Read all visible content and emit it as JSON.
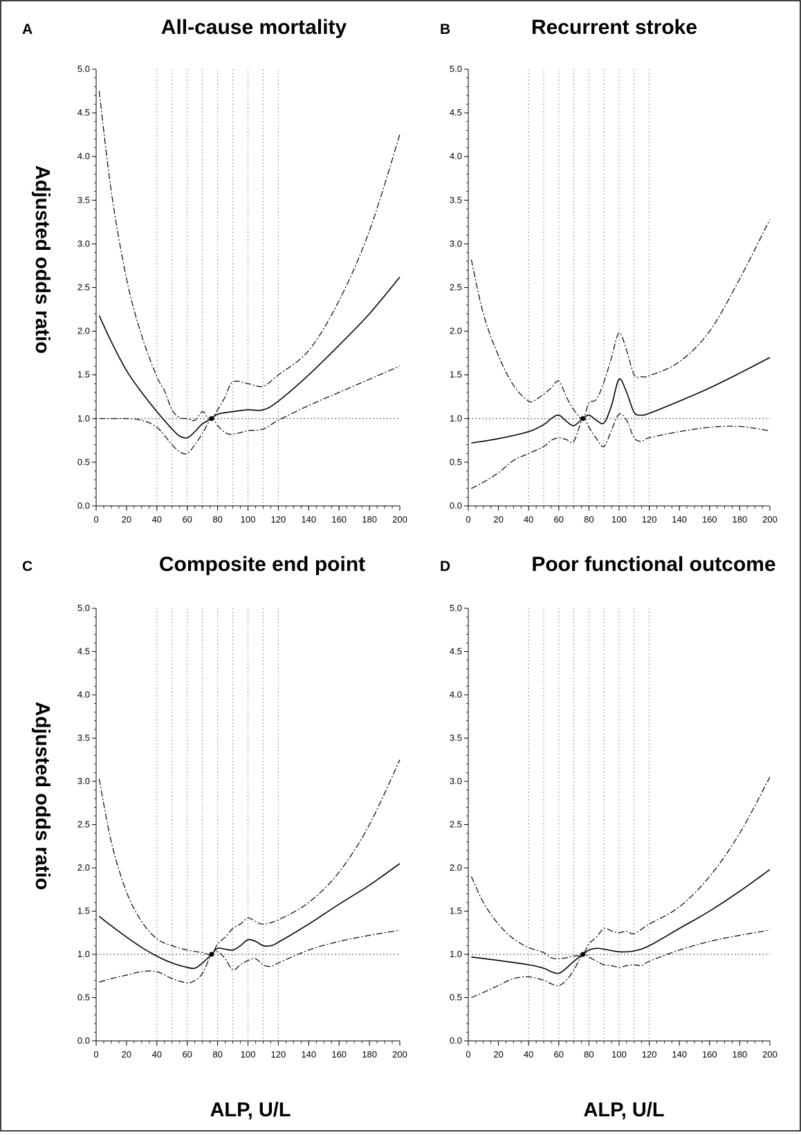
{
  "figure": {
    "y_axis_label_top": "Adjusted odds ratio",
    "y_axis_label_bottom": "Adjusted odds ratio",
    "x_axis_label_left": "ALP, U/L",
    "x_axis_label_right": "ALP, U/L"
  },
  "chart_data": [
    {
      "type": "line",
      "panel_label": "A",
      "title": "All-cause mortality",
      "xlabel": "ALP, U/L",
      "ylabel": "Adjusted odds ratio",
      "xlim": [
        0,
        200
      ],
      "ylim": [
        0,
        5
      ],
      "x_ticks": [
        "0",
        "20",
        "40",
        "60",
        "80",
        "100",
        "120",
        "140",
        "160",
        "180",
        "200"
      ],
      "y_ticks": [
        "0.0",
        "0.5",
        "1.0",
        "1.5",
        "2.0",
        "2.5",
        "3.0",
        "3.5",
        "4.0",
        "4.5",
        "5.0"
      ],
      "reference_line_y": 1.0,
      "vertical_reference_x": [
        40,
        50,
        60,
        70,
        80,
        90,
        100,
        110,
        120
      ],
      "reference_point": [
        76,
        1.0
      ],
      "series": [
        {
          "style": "solid",
          "x": [
            2,
            10,
            20,
            30,
            40,
            50,
            55,
            60,
            65,
            70,
            76,
            80,
            90,
            100,
            110,
            120,
            140,
            160,
            180,
            200
          ],
          "y": [
            2.18,
            1.88,
            1.55,
            1.3,
            1.08,
            0.88,
            0.8,
            0.78,
            0.85,
            0.94,
            1.0,
            1.05,
            1.08,
            1.1,
            1.1,
            1.2,
            1.5,
            1.84,
            2.2,
            2.62
          ]
        },
        {
          "style": "dash-dot",
          "x": [
            2,
            10,
            20,
            30,
            40,
            45,
            50,
            55,
            60,
            65,
            70,
            73,
            76,
            80,
            85,
            90,
            100,
            110,
            120,
            140,
            160,
            180,
            200
          ],
          "y": [
            4.75,
            3.6,
            2.6,
            1.95,
            1.48,
            1.32,
            1.1,
            1.01,
            1.0,
            0.98,
            1.08,
            1.02,
            1.0,
            1.1,
            1.25,
            1.42,
            1.4,
            1.37,
            1.5,
            1.78,
            2.35,
            3.15,
            4.25
          ]
        },
        {
          "style": "dash-dot",
          "x": [
            2,
            10,
            20,
            30,
            40,
            50,
            55,
            60,
            65,
            70,
            76,
            80,
            85,
            90,
            100,
            110,
            120,
            140,
            160,
            180,
            200
          ],
          "y": [
            1.0,
            1.0,
            1.0,
            0.98,
            0.9,
            0.7,
            0.62,
            0.6,
            0.7,
            0.83,
            1.0,
            0.92,
            0.84,
            0.82,
            0.86,
            0.88,
            0.98,
            1.15,
            1.3,
            1.45,
            1.6
          ]
        }
      ]
    },
    {
      "type": "line",
      "panel_label": "B",
      "title": "Recurrent stroke",
      "xlabel": "ALP, U/L",
      "ylabel": "Adjusted odds ratio",
      "xlim": [
        0,
        200
      ],
      "ylim": [
        0,
        5
      ],
      "x_ticks": [
        "0",
        "20",
        "40",
        "60",
        "80",
        "100",
        "120",
        "140",
        "160",
        "180",
        "200"
      ],
      "y_ticks": [
        "0.0",
        "0.5",
        "1.0",
        "1.5",
        "2.0",
        "2.5",
        "3.0",
        "3.5",
        "4.0",
        "4.5",
        "5.0"
      ],
      "reference_line_y": 1.0,
      "vertical_reference_x": [
        40,
        50,
        60,
        70,
        80,
        90,
        100,
        110,
        120
      ],
      "reference_point": [
        76,
        1.0
      ],
      "series": [
        {
          "style": "solid",
          "x": [
            2,
            20,
            40,
            50,
            55,
            60,
            65,
            70,
            76,
            80,
            85,
            90,
            95,
            100,
            105,
            110,
            115,
            120,
            140,
            160,
            180,
            200
          ],
          "y": [
            0.72,
            0.77,
            0.85,
            0.93,
            1.0,
            1.04,
            0.97,
            0.92,
            1.0,
            1.04,
            0.98,
            0.95,
            1.15,
            1.45,
            1.3,
            1.07,
            1.04,
            1.06,
            1.2,
            1.35,
            1.52,
            1.7
          ]
        },
        {
          "style": "dash-dot",
          "x": [
            2,
            10,
            20,
            30,
            40,
            45,
            50,
            55,
            60,
            65,
            70,
            76,
            80,
            85,
            90,
            95,
            100,
            105,
            110,
            115,
            120,
            140,
            160,
            180,
            200
          ],
          "y": [
            2.82,
            2.2,
            1.72,
            1.38,
            1.2,
            1.22,
            1.28,
            1.35,
            1.43,
            1.25,
            1.1,
            1.0,
            1.18,
            1.22,
            1.42,
            1.7,
            1.98,
            1.78,
            1.5,
            1.48,
            1.49,
            1.65,
            2.0,
            2.6,
            3.28
          ]
        },
        {
          "style": "dash-dot",
          "x": [
            2,
            10,
            20,
            30,
            40,
            50,
            55,
            60,
            65,
            70,
            76,
            80,
            85,
            90,
            95,
            100,
            105,
            110,
            115,
            120,
            140,
            160,
            180,
            200
          ],
          "y": [
            0.2,
            0.27,
            0.38,
            0.52,
            0.6,
            0.68,
            0.75,
            0.78,
            0.76,
            0.74,
            1.0,
            0.9,
            0.77,
            0.68,
            0.87,
            1.05,
            0.98,
            0.78,
            0.74,
            0.78,
            0.85,
            0.9,
            0.91,
            0.86
          ]
        }
      ]
    },
    {
      "type": "line",
      "panel_label": "C",
      "title": "Composite end point",
      "xlabel": "ALP, U/L",
      "ylabel": "Adjusted odds ratio",
      "xlim": [
        0,
        200
      ],
      "ylim": [
        0,
        5
      ],
      "x_ticks": [
        "0",
        "20",
        "40",
        "60",
        "80",
        "100",
        "120",
        "140",
        "160",
        "180",
        "200"
      ],
      "y_ticks": [
        "0.0",
        "0.5",
        "1.0",
        "1.5",
        "2.0",
        "2.5",
        "3.0",
        "3.5",
        "4.0",
        "4.5",
        "5.0"
      ],
      "reference_line_y": 1.0,
      "vertical_reference_x": [
        40,
        50,
        60,
        70,
        80,
        90,
        100,
        110,
        120
      ],
      "reference_point": [
        76,
        1.0
      ],
      "series": [
        {
          "style": "solid",
          "x": [
            2,
            10,
            20,
            30,
            40,
            50,
            60,
            65,
            70,
            76,
            80,
            85,
            90,
            95,
            100,
            105,
            110,
            115,
            120,
            140,
            160,
            180,
            200
          ],
          "y": [
            1.44,
            1.33,
            1.2,
            1.08,
            0.98,
            0.9,
            0.85,
            0.84,
            0.9,
            1.0,
            1.07,
            1.06,
            1.05,
            1.1,
            1.17,
            1.15,
            1.1,
            1.1,
            1.14,
            1.35,
            1.58,
            1.8,
            2.05
          ]
        },
        {
          "style": "dash-dot",
          "x": [
            2,
            10,
            20,
            30,
            40,
            50,
            60,
            70,
            76,
            80,
            85,
            90,
            95,
            100,
            105,
            110,
            120,
            140,
            160,
            180,
            200
          ],
          "y": [
            3.03,
            2.3,
            1.72,
            1.38,
            1.18,
            1.1,
            1.05,
            1.02,
            1.0,
            1.12,
            1.2,
            1.3,
            1.35,
            1.42,
            1.38,
            1.35,
            1.4,
            1.6,
            1.95,
            2.5,
            3.25
          ]
        },
        {
          "style": "dash-dot",
          "x": [
            2,
            10,
            20,
            30,
            40,
            50,
            60,
            65,
            70,
            76,
            80,
            85,
            90,
            95,
            100,
            105,
            110,
            115,
            120,
            140,
            160,
            180,
            200
          ],
          "y": [
            0.68,
            0.72,
            0.76,
            0.8,
            0.8,
            0.72,
            0.67,
            0.7,
            0.78,
            1.0,
            1.03,
            0.95,
            0.82,
            0.88,
            0.93,
            0.95,
            0.88,
            0.86,
            0.9,
            1.05,
            1.15,
            1.22,
            1.28
          ]
        }
      ]
    },
    {
      "type": "line",
      "panel_label": "D",
      "title": "Poor functional outcome",
      "xlabel": "ALP, U/L",
      "ylabel": "Adjusted odds ratio",
      "xlim": [
        0,
        200
      ],
      "ylim": [
        0,
        5
      ],
      "x_ticks": [
        "0",
        "20",
        "40",
        "60",
        "80",
        "100",
        "120",
        "140",
        "160",
        "180",
        "200"
      ],
      "y_ticks": [
        "0.0",
        "0.5",
        "1.0",
        "1.5",
        "2.0",
        "2.5",
        "3.0",
        "3.5",
        "4.0",
        "4.5",
        "5.0"
      ],
      "reference_line_y": 1.0,
      "vertical_reference_x": [
        40,
        50,
        60,
        70,
        80,
        90,
        100,
        110,
        120
      ],
      "reference_point": [
        76,
        1.0
      ],
      "series": [
        {
          "style": "solid",
          "x": [
            2,
            20,
            40,
            50,
            55,
            60,
            65,
            70,
            76,
            80,
            85,
            90,
            100,
            110,
            120,
            140,
            160,
            180,
            200
          ],
          "y": [
            0.97,
            0.93,
            0.88,
            0.84,
            0.8,
            0.78,
            0.84,
            0.92,
            1.0,
            1.05,
            1.07,
            1.06,
            1.03,
            1.04,
            1.1,
            1.3,
            1.5,
            1.73,
            1.98
          ]
        },
        {
          "style": "dash-dot",
          "x": [
            2,
            10,
            20,
            30,
            40,
            50,
            55,
            60,
            65,
            70,
            76,
            80,
            85,
            90,
            95,
            100,
            105,
            110,
            120,
            140,
            160,
            180,
            200
          ],
          "y": [
            1.9,
            1.6,
            1.35,
            1.18,
            1.08,
            1.02,
            0.96,
            0.95,
            0.96,
            0.98,
            1.0,
            1.12,
            1.2,
            1.3,
            1.27,
            1.25,
            1.27,
            1.24,
            1.35,
            1.55,
            1.9,
            2.4,
            3.05
          ]
        },
        {
          "style": "dash-dot",
          "x": [
            2,
            10,
            20,
            30,
            40,
            50,
            55,
            60,
            65,
            70,
            76,
            80,
            85,
            90,
            95,
            100,
            105,
            110,
            115,
            120,
            140,
            160,
            180,
            200
          ],
          "y": [
            0.5,
            0.56,
            0.64,
            0.72,
            0.74,
            0.7,
            0.66,
            0.64,
            0.7,
            0.82,
            1.0,
            0.97,
            0.92,
            0.88,
            0.87,
            0.85,
            0.87,
            0.88,
            0.87,
            0.92,
            1.05,
            1.15,
            1.22,
            1.28
          ]
        }
      ]
    }
  ]
}
